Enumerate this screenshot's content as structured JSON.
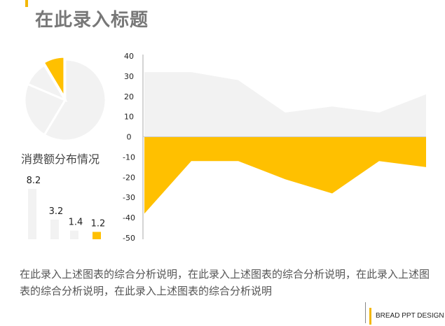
{
  "title": "在此录入标题",
  "footer": "BREAD PPT DESIGN",
  "description": "在此录入上述图表的综合分析说明，在此录入上述图表的综合分析说明，在此录入上述图表的综合分析说明，在此录入上述图表的综合分析说明",
  "pie": {
    "label": "消费额分布情况"
  },
  "colors": {
    "accent": "#FFC000",
    "light": "#F2F2F2",
    "axis": "#999999",
    "text": "#555555"
  },
  "chart_data": [
    {
      "type": "pie",
      "slices": [
        {
          "value": 8.2,
          "color": "#F2F2F2"
        },
        {
          "value": 3.2,
          "color": "#F2F2F2"
        },
        {
          "value": 1.4,
          "color": "#F2F2F2"
        },
        {
          "value": 1.2,
          "color": "#FFC000"
        }
      ]
    },
    {
      "type": "bar",
      "values": [
        8.2,
        3.2,
        1.4,
        1.2
      ],
      "value_labels": [
        "8.2",
        "3.2",
        "1.4",
        "1.2"
      ],
      "highlight_index": 3
    },
    {
      "type": "area",
      "ylim": [
        -50,
        40
      ],
      "yticks": [
        "40",
        "30",
        "20",
        "10",
        "0",
        "-10",
        "-20",
        "-30",
        "-40",
        "-50"
      ],
      "series": [
        {
          "color": "#F2F2F2",
          "values": [
            32,
            32,
            28,
            12,
            15,
            12,
            21
          ]
        },
        {
          "color": "#FFC000",
          "values": [
            -38,
            -12,
            -12,
            -21,
            -28,
            -12,
            -15
          ]
        }
      ]
    }
  ]
}
